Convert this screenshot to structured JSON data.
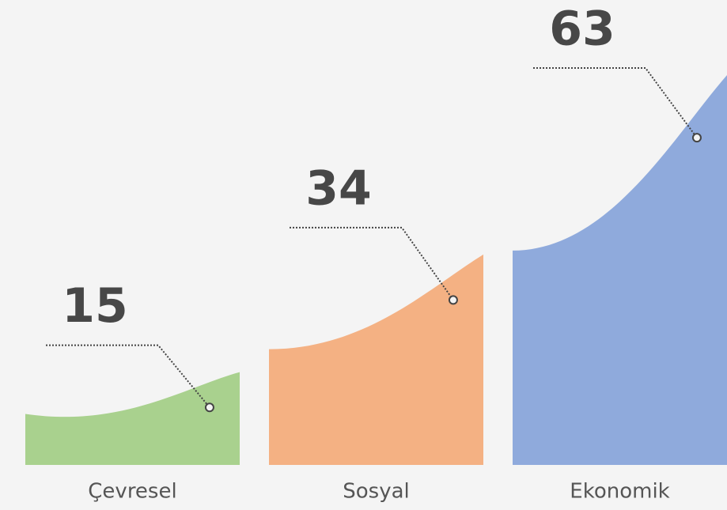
{
  "chart_data": {
    "type": "bar",
    "categories": [
      "Çevresel",
      "Sosyal",
      "Ekonomik"
    ],
    "values": [
      15,
      34,
      63
    ],
    "colors": [
      "#a9d18e",
      "#f4b183",
      "#8faadc"
    ]
  }
}
